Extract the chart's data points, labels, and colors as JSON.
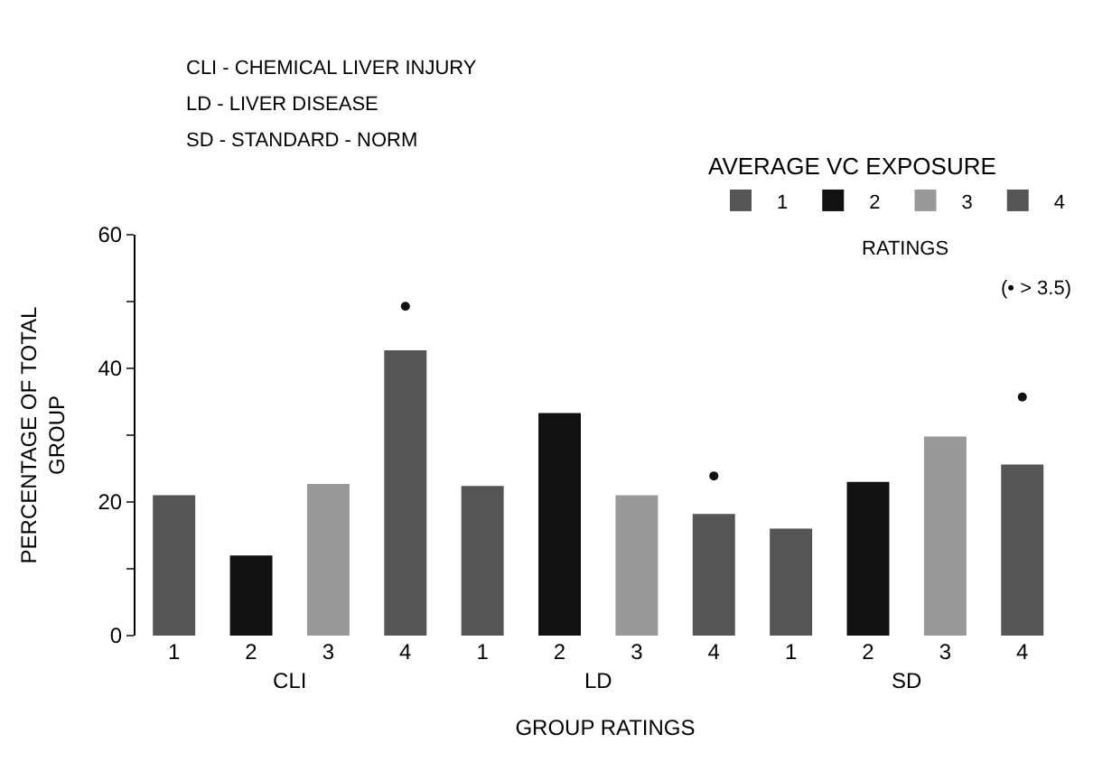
{
  "chart_data": {
    "type": "bar",
    "xlabel": "GROUP RATINGS",
    "ylabel": "PERCENTAGE OF TOTAL GROUP",
    "legend_title": "AVERAGE VC EXPOSURE",
    "legend": "top right",
    "categories": [
      "CLI",
      "LD",
      "SD"
    ],
    "series": [
      {
        "name": "1",
        "color": "#555555",
        "values": [
          21,
          22.4,
          16
        ]
      },
      {
        "name": "2",
        "color": "#111111",
        "values": [
          12,
          33.3,
          23
        ]
      },
      {
        "name": "3",
        "color": "#999999",
        "values": [
          22.7,
          21,
          29.8
        ]
      },
      {
        "name": "4",
        "color": "#555555",
        "values": [
          42.7,
          18.2,
          25.6
        ]
      },
      {
        "type": "scatter",
        "color": "#111111",
        "marker": "circle",
        "x": [
          "CLI",
          "LD",
          "SD"
        ],
        "values": [
          49.3,
          23.9,
          35.7
        ]
      }
    ],
    "ylim": [
      0,
      60
    ],
    "yticks": [
      0,
      {
        "value": 10,
        "label": null
      },
      20,
      {
        "value": 30,
        "label": null
      },
      40,
      {
        "value": 50,
        "label": null
      },
      60
    ],
    "annotations": [
      "CLI - CHEMICAL LIVER INJURY",
      "LD - LIVER DISEASE",
      "SD - STANDARD - NORM",
      "RATINGS",
      "(• > 3.5)"
    ]
  }
}
